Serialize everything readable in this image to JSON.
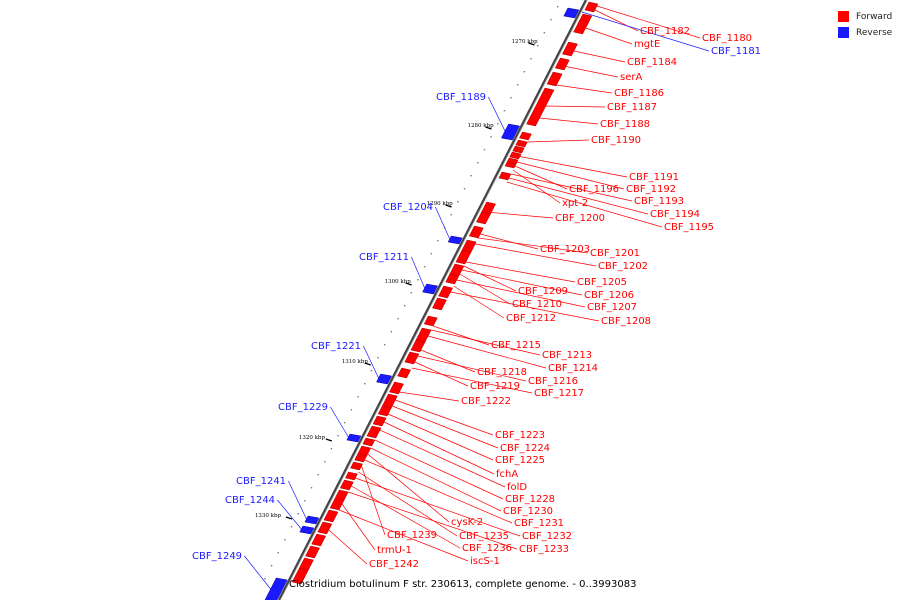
{
  "legend": {
    "forward": {
      "label": "Forward",
      "color": "#ff0000"
    },
    "reverse": {
      "label": "Reverse",
      "color": "#1a1aff"
    }
  },
  "caption": "Clostridium botulinum F str. 230613, complete genome. - 0..3993083",
  "ticks": [
    "1270 kbp",
    "1280 kbp",
    "1290 kbp",
    "1300 kbp",
    "1310 kbp",
    "1320 kbp",
    "1330 kbp"
  ],
  "forward_genes": [
    "CBF_1180",
    "CBF_1182",
    "mgtE",
    "CBF_1184",
    "serA",
    "CBF_1186",
    "CBF_1187",
    "CBF_1188",
    "CBF_1190",
    "CBF_1191",
    "CBF_1192",
    "CBF_1196",
    "xpt-2",
    "CBF_1193",
    "CBF_1194",
    "CBF_1195",
    "CBF_1200",
    "CBF_1203",
    "CBF_1201",
    "CBF_1202",
    "CBF_1205",
    "CBF_1209",
    "CBF_1206",
    "CBF_1210",
    "CBF_1207",
    "CBF_1212",
    "CBF_1208",
    "CBF_1215",
    "CBF_1213",
    "CBF_1214",
    "CBF_1218",
    "CBF_1216",
    "CBF_1219",
    "CBF_1217",
    "CBF_1222",
    "CBF_1223",
    "CBF_1224",
    "CBF_1225",
    "fchA",
    "folD",
    "CBF_1228",
    "CBF_1230",
    "cysK-2",
    "CBF_1231",
    "CBF_1239",
    "CBF_1235",
    "CBF_1232",
    "CBF_1236",
    "CBF_1233",
    "trmU-1",
    "iscS-1",
    "CBF_1242"
  ],
  "reverse_genes": [
    "CBF_1181",
    "CBF_1189",
    "CBF_1204",
    "CBF_1211",
    "CBF_1221",
    "CBF_1229",
    "CBF_1241",
    "CBF_1244",
    "CBF_1249"
  ]
}
